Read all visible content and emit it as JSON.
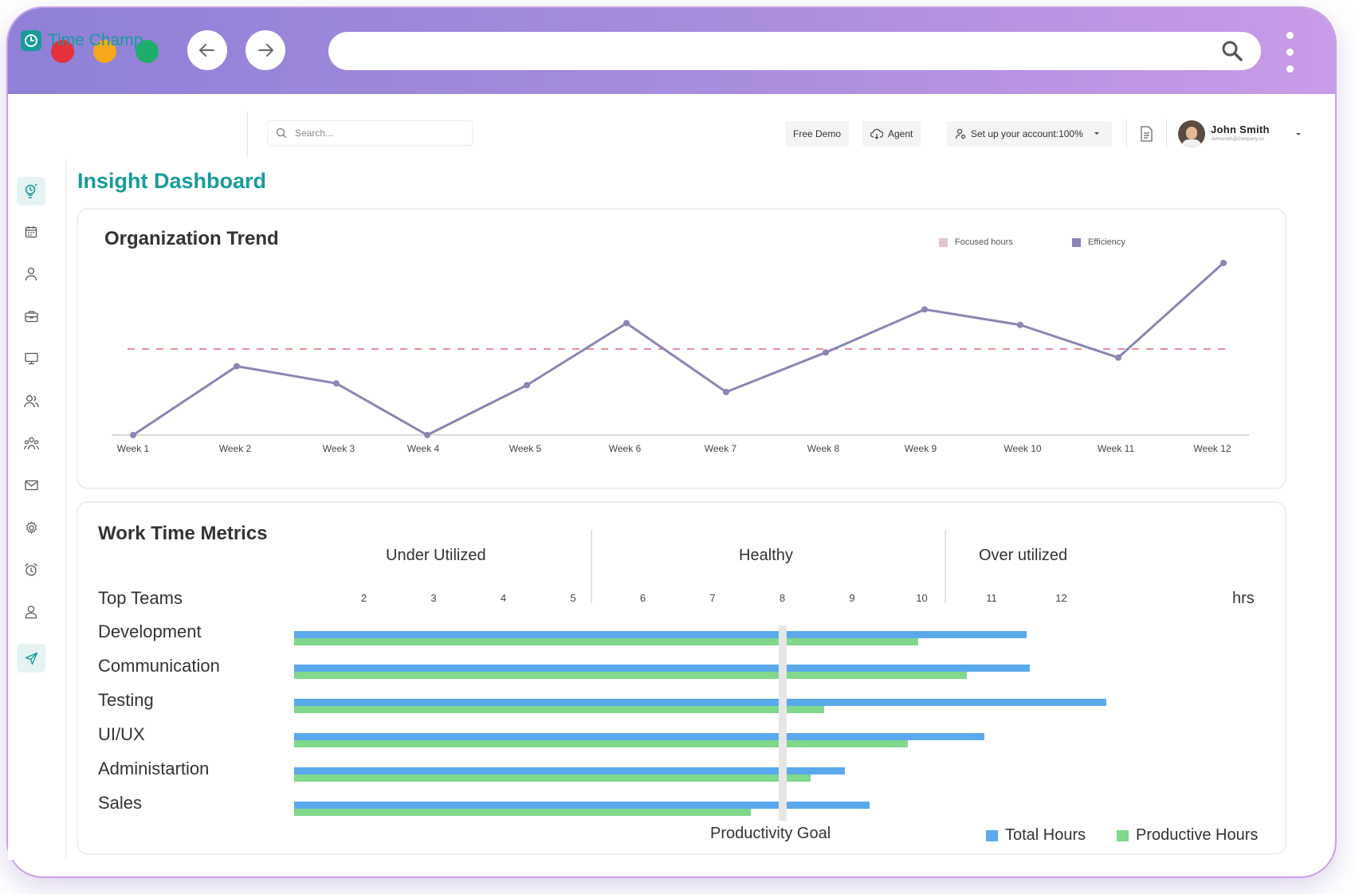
{
  "browser": {
    "window_dots": [
      "#e5303d",
      "#f5a81c",
      "#1fae6a"
    ],
    "icons": {
      "back": "arrow-left-icon",
      "forward": "arrow-right-icon",
      "search": "search-icon",
      "menu": "kebab-menu-icon"
    }
  },
  "header": {
    "logo_text": "Time Champ",
    "search_placeholder": "Search...",
    "free_demo": "Free Demo",
    "agent": "Agent",
    "setup_account": "Set up your account:100%",
    "user_name": "John Smith",
    "user_email": "Johnsmith@Company.co"
  },
  "sidebar": {
    "icons": [
      "insight-bulb-icon",
      "calendar-icon",
      "user-icon",
      "briefcase-icon",
      "monitor-icon",
      "users-icon",
      "team-icon",
      "mail-icon",
      "settings-icon",
      "alarm-clock-icon",
      "profile-icon",
      "send-icon"
    ],
    "active_index": 0
  },
  "page": {
    "title": "Insight Dashboard"
  },
  "org_trend": {
    "title": "Organization Trend",
    "legend": [
      {
        "label": "Focused hours",
        "color": "#e2c6cf"
      },
      {
        "label": "Efficiency",
        "color": "#8a85b3"
      }
    ]
  },
  "work_time": {
    "title": "Work Time Metrics",
    "zones": [
      "Under Utilized",
      "Healthy",
      "Over utilized"
    ],
    "row_header": "Top Teams",
    "unit": "hrs",
    "goal_label": "Productivity Goal",
    "legend": [
      {
        "label": "Total Hours",
        "color": "#5aa9ec"
      },
      {
        "label": "Productive Hours",
        "color": "#7fd88b"
      }
    ]
  },
  "chart_data": [
    {
      "type": "line",
      "title": "Organization Trend",
      "x": [
        "Week 1",
        "Week 2",
        "Week 3",
        "Week 4",
        "Week 5",
        "Week 6",
        "Week 7",
        "Week 8",
        "Week 9",
        "Week 10",
        "Week 11",
        "Week 12"
      ],
      "series": [
        {
          "name": "Efficiency",
          "values": [
            0,
            40,
            30,
            0,
            29,
            65,
            25,
            48,
            73,
            64,
            45,
            100
          ],
          "color": "#8a85b3"
        }
      ],
      "reference_line": {
        "value": 50,
        "style": "dashed",
        "color": "#e06a78"
      },
      "ylim": [
        0,
        100
      ],
      "grid": false,
      "legend_position": "top-right"
    },
    {
      "type": "bar",
      "orientation": "horizontal",
      "title": "Work Time Metrics",
      "categories": [
        "Development",
        "Communication",
        "Testing",
        "UI/UX",
        "Administartion",
        "Sales"
      ],
      "ticks": [
        "2",
        "3",
        "4",
        "5",
        "6",
        "7",
        "8",
        "9",
        "10",
        "11",
        "12"
      ],
      "series": [
        {
          "name": "Total Hours",
          "values": [
            11.5,
            11.55,
            12.65,
            10.9,
            8.9,
            9.25
          ],
          "color": "#5aa9ec"
        },
        {
          "name": "Productive Hours",
          "values": [
            9.95,
            10.65,
            8.6,
            9.8,
            8.4,
            7.55
          ],
          "color": "#7fd88b"
        }
      ],
      "goal": 8,
      "xlim": [
        1,
        12.5
      ],
      "xlabel": "hrs"
    }
  ]
}
